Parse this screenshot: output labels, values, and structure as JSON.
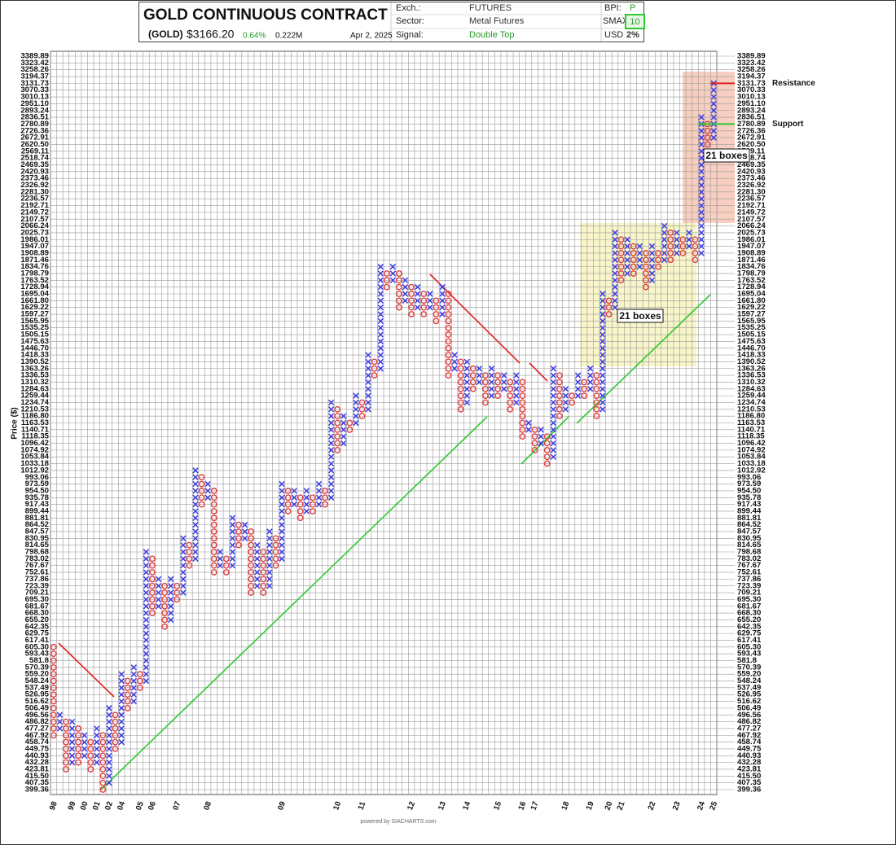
{
  "header": {
    "title": "GOLD CONTINUOUS CONTRACT",
    "symbol": "(GOLD)",
    "price": "$3166.20",
    "change": "0.64%",
    "volume": "0.222M",
    "date": "Apr 2, 2025",
    "exch_label": "Exch.:",
    "exch": "FUTURES",
    "sector_label": "Sector:",
    "sector": "Metal Futures",
    "signal_label": "Signal:",
    "signal": "Double Top",
    "bpi_label": "BPI:",
    "bpi": "P",
    "smax_label": "SMAX:",
    "smax": "10",
    "usd_label": "USD",
    "usd": "2%"
  },
  "footer": "powered by SIACHARTS.com",
  "chart_data": {
    "type": "point-and-figure",
    "ylabel": "Price ($)",
    "log_scale": true,
    "grid": true,
    "x_color": "#3b3be6",
    "o_color": "#e23c3c",
    "ylim": [
      399.36,
      3389.89
    ],
    "yticks": [
      399.36,
      407.35,
      {
        "value": 415.5,
        "label": "415.50"
      },
      423.81,
      432.28,
      440.93,
      449.75,
      458.74,
      467.92,
      477.27,
      486.82,
      496.56,
      506.49,
      516.62,
      526.95,
      537.49,
      548.24,
      {
        "value": 559.2,
        "label": "559.20"
      },
      570.39,
      581.8,
      593.43,
      {
        "value": 605.3,
        "label": "605.30"
      },
      617.41,
      629.75,
      642.35,
      {
        "value": 655.2,
        "label": "655.20"
      },
      {
        "value": 668.3,
        "label": "668.30"
      },
      681.67,
      {
        "value": 695.3,
        "label": "695.30"
      },
      709.21,
      723.39,
      737.86,
      752.61,
      767.67,
      783.02,
      798.68,
      814.65,
      830.95,
      847.57,
      864.52,
      881.81,
      899.44,
      917.43,
      935.78,
      {
        "value": 954.5,
        "label": "954.50"
      },
      973.59,
      993.06,
      1012.92,
      1033.18,
      1053.84,
      1074.92,
      1096.42,
      1118.35,
      1140.71,
      1163.53,
      {
        "value": 1186.8,
        "label": "1186.80"
      },
      1210.53,
      1234.74,
      1259.44,
      1284.63,
      1310.32,
      1336.53,
      1363.26,
      1390.52,
      1418.33,
      {
        "value": 1446.7,
        "label": "1446.70"
      },
      1475.63,
      1505.15,
      1535.25,
      1565.95,
      1597.27,
      1629.22,
      {
        "value": 1661.8,
        "label": "1661.80"
      },
      1695.04,
      1728.94,
      1763.52,
      1798.79,
      1834.76,
      1871.46,
      1908.89,
      1947.07,
      1986.01,
      2025.73,
      2066.24,
      2107.57,
      2149.72,
      2192.71,
      2236.57,
      {
        "value": 2281.3,
        "label": "2281.30"
      },
      2326.92,
      2373.46,
      2420.93,
      2469.35,
      2518.74,
      2569.11,
      {
        "value": 2620.5,
        "label": "2620.50"
      },
      2672.91,
      2726.36,
      2780.89,
      2836.51,
      2893.24,
      {
        "value": 2951.1,
        "label": "2951.10"
      },
      3010.13,
      3070.33,
      3131.73,
      3194.37,
      3258.26,
      3323.42,
      3389.89
    ],
    "columns": [
      {
        "type": "O",
        "high": 605.3,
        "low": 467.92,
        "year": "98"
      },
      {
        "type": "X",
        "low": 477.27,
        "high": 496.56
      },
      {
        "type": "O",
        "high": 486.82,
        "low": 423.81
      },
      {
        "type": "X",
        "low": 432.28,
        "high": 486.82,
        "year": "99"
      },
      {
        "type": "O",
        "high": 477.27,
        "low": 432.28
      },
      {
        "type": "X",
        "low": 440.93,
        "high": 467.92,
        "year": "00"
      },
      {
        "type": "O",
        "high": 458.74,
        "low": 423.81
      },
      {
        "type": "X",
        "low": 432.28,
        "high": 477.27,
        "year": "01"
      },
      {
        "type": "O",
        "high": 467.92,
        "low": 399.36
      },
      {
        "type": "X",
        "low": 407.35,
        "high": 506.49,
        "year": "02"
      },
      {
        "type": "O",
        "high": 496.56,
        "low": 449.75
      },
      {
        "type": "X",
        "low": 458.74,
        "high": 559.2,
        "year": "04"
      },
      {
        "type": "O",
        "high": 548.24,
        "low": 506.49
      },
      {
        "type": "X",
        "low": 516.62,
        "high": 570.39
      },
      {
        "type": "O",
        "high": 559.2,
        "low": 537.49,
        "year": "05"
      },
      {
        "type": "X",
        "low": 548.24,
        "high": 798.68
      },
      {
        "type": "O",
        "high": 783.02,
        "low": 668.3,
        "year": "06"
      },
      {
        "type": "X",
        "low": 681.67,
        "high": 737.86
      },
      {
        "type": "O",
        "high": 723.39,
        "low": 642.35
      },
      {
        "type": "X",
        "low": 655.2,
        "high": 737.86
      },
      {
        "type": "O",
        "high": 723.39,
        "low": 695.3,
        "year": "07"
      },
      {
        "type": "X",
        "low": 709.21,
        "high": 830.95
      },
      {
        "type": "O",
        "high": 814.65,
        "low": 767.67
      },
      {
        "type": "X",
        "low": 783.02,
        "high": 1012.92
      },
      {
        "type": "O",
        "high": 993.06,
        "low": 917.43
      },
      {
        "type": "X",
        "low": 935.78,
        "high": 973.59,
        "year": "08"
      },
      {
        "type": "O",
        "high": 954.5,
        "low": 752.61
      },
      {
        "type": "X",
        "low": 767.67,
        "high": 798.68
      },
      {
        "type": "O",
        "high": 783.02,
        "low": 752.61
      },
      {
        "type": "X",
        "low": 767.67,
        "high": 881.81
      },
      {
        "type": "O",
        "high": 864.52,
        "low": 814.65
      },
      {
        "type": "X",
        "low": 830.95,
        "high": 864.52
      },
      {
        "type": "O",
        "high": 847.57,
        "low": 709.21
      },
      {
        "type": "X",
        "low": 723.39,
        "high": 814.65
      },
      {
        "type": "O",
        "high": 798.68,
        "low": 709.21
      },
      {
        "type": "X",
        "low": 723.39,
        "high": 847.57
      },
      {
        "type": "O",
        "high": 830.95,
        "low": 767.67
      },
      {
        "type": "X",
        "low": 783.02,
        "high": 973.59,
        "year": "09"
      },
      {
        "type": "O",
        "high": 954.5,
        "low": 899.44
      },
      {
        "type": "X",
        "low": 917.43,
        "high": 954.5
      },
      {
        "type": "O",
        "high": 935.78,
        "low": 881.81
      },
      {
        "type": "X",
        "low": 899.44,
        "high": 954.5
      },
      {
        "type": "O",
        "high": 935.78,
        "low": 899.44
      },
      {
        "type": "X",
        "low": 917.43,
        "high": 973.59
      },
      {
        "type": "O",
        "high": 954.5,
        "low": 917.43
      },
      {
        "type": "X",
        "low": 935.78,
        "high": 1234.74
      },
      {
        "type": "O",
        "high": 1210.53,
        "low": 1074.92,
        "year": "10"
      },
      {
        "type": "X",
        "low": 1096.42,
        "high": 1186.8
      },
      {
        "type": "O",
        "high": 1163.53,
        "low": 1140.71
      },
      {
        "type": "X",
        "low": 1163.53,
        "high": 1259.44
      },
      {
        "type": "O",
        "high": 1234.74,
        "low": 1186.8,
        "year": "11"
      },
      {
        "type": "X",
        "low": 1210.53,
        "high": 1418.33
      },
      {
        "type": "O",
        "high": 1390.52,
        "low": 1336.53
      },
      {
        "type": "X",
        "low": 1363.26,
        "high": 1834.76
      },
      {
        "type": "O",
        "high": 1798.79,
        "low": 1728.94
      },
      {
        "type": "X",
        "low": 1763.52,
        "high": 1834.76
      },
      {
        "type": "O",
        "high": 1798.79,
        "low": 1629.22
      },
      {
        "type": "X",
        "low": 1661.8,
        "high": 1763.52
      },
      {
        "type": "O",
        "high": 1728.94,
        "low": 1597.27,
        "year": "12"
      },
      {
        "type": "X",
        "low": 1629.22,
        "high": 1728.94
      },
      {
        "type": "O",
        "high": 1695.04,
        "low": 1597.27
      },
      {
        "type": "X",
        "low": 1629.22,
        "high": 1695.04
      },
      {
        "type": "O",
        "high": 1661.8,
        "low": 1565.95
      },
      {
        "type": "X",
        "low": 1597.27,
        "high": 1728.94,
        "year": "13"
      },
      {
        "type": "O",
        "high": 1695.04,
        "low": 1336.53
      },
      {
        "type": "X",
        "low": 1363.26,
        "high": 1418.33
      },
      {
        "type": "O",
        "high": 1390.52,
        "low": 1210.53
      },
      {
        "type": "X",
        "low": 1234.74,
        "high": 1390.52,
        "year": "14"
      },
      {
        "type": "O",
        "high": 1363.26,
        "low": 1284.63
      },
      {
        "type": "X",
        "low": 1310.32,
        "high": 1363.26
      },
      {
        "type": "O",
        "high": 1336.53,
        "low": 1234.74
      },
      {
        "type": "X",
        "low": 1259.44,
        "high": 1363.26
      },
      {
        "type": "O",
        "high": 1336.53,
        "low": 1259.44,
        "year": "15"
      },
      {
        "type": "X",
        "low": 1284.63,
        "high": 1336.53
      },
      {
        "type": "O",
        "high": 1310.32,
        "low": 1210.53
      },
      {
        "type": "X",
        "low": 1234.74,
        "high": 1336.53
      },
      {
        "type": "O",
        "high": 1310.32,
        "low": 1118.35,
        "year": "16"
      },
      {
        "type": "X",
        "low": 1140.71,
        "high": 1163.53
      },
      {
        "type": "O",
        "high": 1140.71,
        "low": 1074.92,
        "year": "17"
      },
      {
        "type": "X",
        "low": 1096.42,
        "high": 1140.71
      },
      {
        "type": "O",
        "high": 1118.35,
        "low": 1033.18
      },
      {
        "type": "X",
        "low": 1053.84,
        "high": 1363.26
      },
      {
        "type": "O",
        "high": 1336.53,
        "low": 1186.8
      },
      {
        "type": "X",
        "low": 1210.53,
        "high": 1284.63,
        "year": "18"
      },
      {
        "type": "O",
        "high": 1259.44,
        "low": 1234.74
      },
      {
        "type": "X",
        "low": 1259.44,
        "high": 1336.53
      },
      {
        "type": "O",
        "high": 1310.32,
        "low": 1259.44
      },
      {
        "type": "X",
        "low": 1284.63,
        "high": 1363.26,
        "year": "19"
      },
      {
        "type": "O",
        "high": 1336.53,
        "low": 1186.8
      },
      {
        "type": "X",
        "low": 1210.53,
        "high": 1695.04
      },
      {
        "type": "O",
        "high": 1661.8,
        "low": 1597.27,
        "year": "20"
      },
      {
        "type": "X",
        "low": 1629.22,
        "high": 2025.73
      },
      {
        "type": "O",
        "high": 1986.01,
        "low": 1763.52,
        "year": "21"
      },
      {
        "type": "X",
        "low": 1798.79,
        "high": 1986.01
      },
      {
        "type": "O",
        "high": 1947.07,
        "low": 1798.79
      },
      {
        "type": "X",
        "low": 1834.76,
        "high": 1947.07
      },
      {
        "type": "O",
        "high": 1908.89,
        "low": 1728.94
      },
      {
        "type": "X",
        "low": 1763.52,
        "high": 1947.07,
        "year": "22"
      },
      {
        "type": "O",
        "high": 1908.89,
        "low": 1834.76
      },
      {
        "type": "X",
        "low": 1871.46,
        "high": 2066.24
      },
      {
        "type": "O",
        "high": 2025.73,
        "low": 1871.46
      },
      {
        "type": "X",
        "low": 1908.89,
        "high": 2025.73,
        "year": "23"
      },
      {
        "type": "O",
        "high": 1986.01,
        "low": 1908.89
      },
      {
        "type": "X",
        "low": 1947.07,
        "high": 2025.73
      },
      {
        "type": "O",
        "high": 1986.01,
        "low": 1871.46
      },
      {
        "type": "X",
        "low": 1908.89,
        "high": 2836.51,
        "year": "24"
      },
      {
        "type": "O",
        "high": 2780.89,
        "low": 2620.5
      },
      {
        "type": "X",
        "low": 2672.91,
        "high": 3131.73,
        "year": "25"
      }
    ],
    "resistance": {
      "label": "Resistance",
      "value": 3131.73,
      "color": "#e02020"
    },
    "support": {
      "label": "Support",
      "value": 2780.89,
      "color": "#2ec92e"
    },
    "box_count_labels": [
      "21 boxes",
      "21 boxes"
    ]
  }
}
